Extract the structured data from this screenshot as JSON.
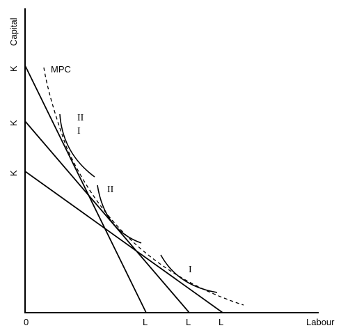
{
  "axes": {
    "y_label": "Capital",
    "x_label": "Labour",
    "origin_label": "0",
    "y_ticks": [
      "K",
      "K",
      "K"
    ],
    "x_ticks": [
      "L",
      "L",
      "L"
    ]
  },
  "curves": {
    "mpc_label": "MPC",
    "isoquant_labels": [
      "II",
      "I",
      "II",
      "I"
    ]
  }
}
